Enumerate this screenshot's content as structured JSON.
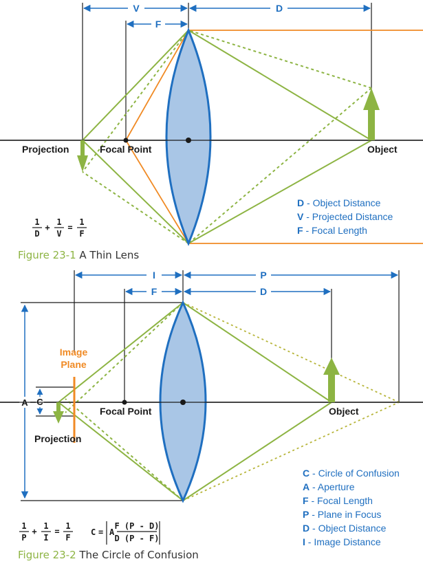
{
  "figure1": {
    "labels": {
      "V": "V",
      "F": "F",
      "D": "D",
      "projection": "Projection",
      "focal_point": "Focal Point",
      "object": "Object"
    },
    "legend": [
      {
        "key": "D",
        "text": " - Object Distance"
      },
      {
        "key": "V",
        "text": " - Projected Distance"
      },
      {
        "key": "F",
        "text": " - Focal Length"
      }
    ],
    "formula": {
      "n1": "1",
      "d1": "D",
      "n2": "1",
      "d2": "V",
      "n3": "1",
      "d3": "F",
      "plus": "+",
      "eq": "="
    },
    "caption_number": "Figure 23-1",
    "caption_text": " A Thin Lens"
  },
  "figure2": {
    "labels": {
      "I": "I",
      "P": "P",
      "F": "F",
      "D": "D",
      "A": "A",
      "C": "C",
      "image_plane_1": "Image",
      "image_plane_2": "Plane",
      "focal_point": "Focal Point",
      "object": "Object",
      "projection": "Projection"
    },
    "legend": [
      {
        "key": "C",
        "text": " - Circle of Confusion"
      },
      {
        "key": "A",
        "text": " - Aperture"
      },
      {
        "key": "F",
        "text": " - Focal Length"
      },
      {
        "key": "P",
        "text": " - Plane in Focus"
      },
      {
        "key": "D",
        "text": " - Object Distance"
      },
      {
        "key": "I",
        "text": " - Image Distance"
      }
    ],
    "formula": {
      "n1": "1",
      "d1": "P",
      "n2": "1",
      "d2": "I",
      "n3": "1",
      "d3": "F",
      "plus": "+",
      "eq": "=",
      "c_lhs": "C",
      "c_eq": "=",
      "c_a": "A",
      "c_num": "F (P - D)",
      "c_den": "D (P - F)"
    },
    "caption_number": "Figure 23-2",
    "caption_text": " The Circle of Confusion"
  },
  "colors": {
    "green": "#8db443",
    "orange": "#f08a24",
    "blue": "#1f6fc0",
    "lens_fill": "#a9c6e6",
    "lens_stroke": "#1f6fc0"
  }
}
